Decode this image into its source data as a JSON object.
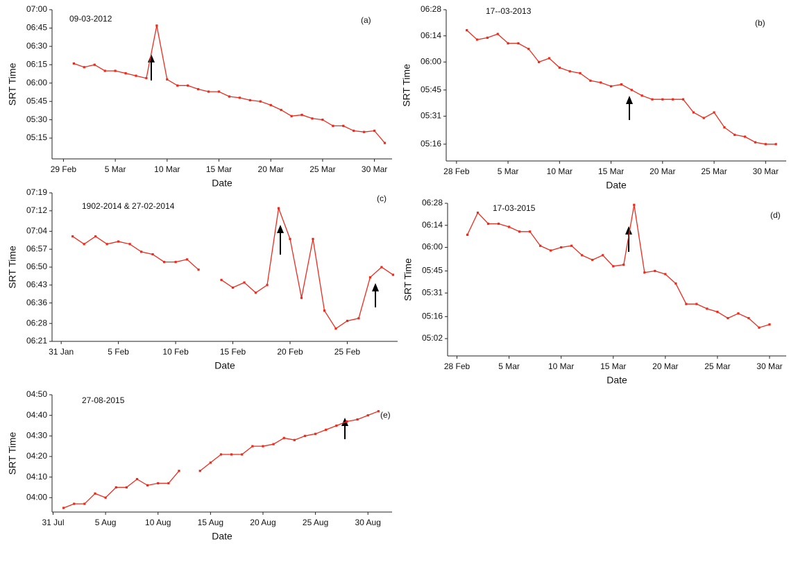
{
  "chart_data": [
    {
      "type": "line",
      "title": "09-03-2012",
      "panel_label": "(a)",
      "xlabel": "Date",
      "ylabel": "SRT Time",
      "x": [
        1,
        2,
        3,
        4,
        5,
        6,
        7,
        8,
        9,
        10,
        11,
        12,
        13,
        14,
        15,
        16,
        17,
        18,
        19,
        20,
        21,
        22,
        23,
        24,
        25,
        26,
        27,
        28,
        29,
        30,
        31
      ],
      "series": [
        {
          "color": "#ee2a1b",
          "values": [
            376,
            373,
            375,
            370,
            370,
            368,
            366,
            364,
            407,
            363,
            358,
            358,
            355,
            353,
            353,
            349,
            348,
            346,
            345,
            342,
            338,
            333,
            334,
            331,
            330,
            325,
            325,
            321,
            320,
            321,
            311
          ]
        }
      ],
      "xlim": [
        -1.1,
        31.7
      ],
      "xticks": [
        {
          "value": 0,
          "label": "29 Feb"
        },
        {
          "value": 5,
          "label": "5 Mar"
        },
        {
          "value": 10,
          "label": "10  Mar"
        },
        {
          "value": 15,
          "label": "15 Mar"
        },
        {
          "value": 20,
          "label": "20 Mar"
        },
        {
          "value": 25,
          "label": "25 Mar"
        },
        {
          "value": 30,
          "label": "30 Mar"
        }
      ],
      "ylim": [
        298,
        420
      ],
      "yticks": [
        {
          "value": 420,
          "label": "07:00"
        },
        {
          "value": 405,
          "label": "06:45"
        },
        {
          "value": 390,
          "label": "06:30"
        },
        {
          "value": 375,
          "label": "06:15"
        },
        {
          "value": 360,
          "label": "06:00"
        },
        {
          "value": 345,
          "label": "05:45"
        },
        {
          "value": 330,
          "label": "05:30"
        },
        {
          "value": 315,
          "label": "05:15"
        }
      ]
    },
    {
      "type": "line",
      "title": "17--03-2013",
      "panel_label": "(b)",
      "xlabel": "Date",
      "ylabel": "SRT Time",
      "x": [
        1,
        2,
        3,
        4,
        5,
        6,
        7,
        8,
        9,
        10,
        11,
        12,
        13,
        14,
        15,
        16,
        17,
        18,
        19,
        20,
        21,
        22,
        23,
        24,
        25,
        26,
        27,
        28,
        29,
        30,
        31
      ],
      "series": [
        {
          "color": "#ee2a1b",
          "values": [
            377,
            372,
            373,
            375,
            370,
            370,
            367,
            360,
            362,
            357,
            355,
            354,
            350,
            349,
            347,
            348,
            345,
            342,
            340,
            340,
            340,
            340,
            333,
            330,
            333,
            325,
            321,
            320,
            317,
            316,
            316
          ]
        }
      ],
      "xlim": [
        -1,
        32
      ],
      "xticks": [
        {
          "value": 0,
          "label": "28 Feb"
        },
        {
          "value": 5,
          "label": "5 Mar"
        },
        {
          "value": 10,
          "label": "10 Mar"
        },
        {
          "value": 15,
          "label": "15 Mar"
        },
        {
          "value": 20,
          "label": "20 Mar"
        },
        {
          "value": 25,
          "label": "25 Mar"
        },
        {
          "value": 30,
          "label": "30 Mar"
        }
      ],
      "ylim": [
        307,
        388
      ],
      "yticks": [
        {
          "value": 388,
          "label": "06:28"
        },
        {
          "value": 374,
          "label": "06:14"
        },
        {
          "value": 360,
          "label": "06:00"
        },
        {
          "value": 345,
          "label": "05:45"
        },
        {
          "value": 331,
          "label": "05:31"
        },
        {
          "value": 316,
          "label": "05:16"
        }
      ]
    },
    {
      "type": "line",
      "title": "1902-2014 & 27-02-2014",
      "panel_label": "(c)",
      "xlabel": "Date",
      "ylabel": "SRT Time",
      "x": [
        1,
        2,
        3,
        4,
        5,
        6,
        7,
        8,
        9,
        10,
        11,
        12,
        13,
        14,
        15,
        16,
        17,
        18,
        19,
        20,
        21,
        22,
        23,
        24,
        25,
        26,
        27,
        28,
        29
      ],
      "series": [
        {
          "color": "#ee2a1b",
          "values": [
            422,
            419,
            422,
            419,
            420,
            419,
            416,
            415,
            412,
            412,
            413,
            409,
            null,
            405,
            402,
            404,
            400,
            403,
            433,
            421,
            398,
            421,
            393,
            386,
            389,
            390,
            406,
            410,
            407
          ]
        }
      ],
      "xlim": [
        -0.8,
        29.4
      ],
      "xticks": [
        {
          "value": 0,
          "label": "31 Jan"
        },
        {
          "value": 5,
          "label": "5 Feb"
        },
        {
          "value": 10,
          "label": "10 Feb"
        },
        {
          "value": 15,
          "label": "15 Feb"
        },
        {
          "value": 20,
          "label": "20 Feb"
        },
        {
          "value": 25,
          "label": "25 Feb"
        }
      ],
      "ylim": [
        381,
        439
      ],
      "yticks": [
        {
          "value": 439,
          "label": "07:19"
        },
        {
          "value": 432,
          "label": "07:12"
        },
        {
          "value": 424,
          "label": "07:04"
        },
        {
          "value": 417,
          "label": "06:57"
        },
        {
          "value": 410,
          "label": "06:50"
        },
        {
          "value": 403,
          "label": "06:43"
        },
        {
          "value": 396,
          "label": "06:36"
        },
        {
          "value": 388,
          "label": "06:28"
        },
        {
          "value": 381,
          "label": "06:21"
        }
      ]
    },
    {
      "type": "line",
      "title": "17-03-2015",
      "panel_label": "(d)",
      "xlabel": "Date",
      "ylabel": "SRT Time",
      "x": [
        1,
        2,
        3,
        4,
        5,
        6,
        7,
        8,
        9,
        10,
        11,
        12,
        13,
        14,
        15,
        16,
        17,
        18,
        19,
        20,
        21,
        22,
        23,
        24,
        25,
        26,
        27,
        28,
        29,
        30
      ],
      "series": [
        {
          "color": "#ee2a1b",
          "values": [
            368,
            382,
            375,
            375,
            373,
            370,
            370,
            361,
            358,
            360,
            361,
            355,
            352,
            355,
            348,
            349,
            387,
            344,
            345,
            343,
            337,
            324,
            324,
            321,
            319,
            315,
            318,
            315,
            309,
            311
          ]
        }
      ],
      "xlim": [
        -0.9,
        31.6
      ],
      "xticks": [
        {
          "value": 0,
          "label": "28 Feb"
        },
        {
          "value": 5,
          "label": "5 Mar"
        },
        {
          "value": 10,
          "label": "10 Mar"
        },
        {
          "value": 15,
          "label": "15 Mar"
        },
        {
          "value": 20,
          "label": "20 Mar"
        },
        {
          "value": 25,
          "label": "25 Mar"
        },
        {
          "value": 30,
          "label": "30 Mar"
        }
      ],
      "ylim": [
        291,
        388
      ],
      "yticks": [
        {
          "value": 388,
          "label": "06:28"
        },
        {
          "value": 374,
          "label": "06:14"
        },
        {
          "value": 360,
          "label": "06:00"
        },
        {
          "value": 345,
          "label": "05:45"
        },
        {
          "value": 331,
          "label": "05:31"
        },
        {
          "value": 316,
          "label": "05:16"
        },
        {
          "value": 302,
          "label": "05:02"
        }
      ]
    },
    {
      "type": "line",
      "title": "27-08-2015",
      "panel_label": "(e)",
      "xlabel": "Date",
      "ylabel": "SRT Time",
      "x": [
        1,
        2,
        3,
        4,
        5,
        6,
        7,
        8,
        9,
        10,
        11,
        12,
        13,
        14,
        15,
        16,
        17,
        18,
        19,
        20,
        21,
        22,
        23,
        24,
        25,
        26,
        27,
        28,
        29,
        30,
        31
      ],
      "series": [
        {
          "color": "#ee2a1b",
          "values": [
            235,
            237,
            237,
            242,
            240,
            245,
            245,
            249,
            246,
            247,
            247,
            253,
            null,
            253,
            257,
            261,
            261,
            261,
            265,
            265,
            266,
            269,
            268,
            270,
            271,
            273,
            275,
            277,
            278,
            280,
            282
          ]
        }
      ],
      "xlim": [
        -0.1,
        32.3
      ],
      "xticks": [
        {
          "value": 0,
          "label": "31 Jul"
        },
        {
          "value": 5,
          "label": "5 Aug"
        },
        {
          "value": 10,
          "label": "10 Aug"
        },
        {
          "value": 15,
          "label": "15 Aug"
        },
        {
          "value": 20,
          "label": "20 Aug"
        },
        {
          "value": 25,
          "label": "25 Aug"
        },
        {
          "value": 30,
          "label": "30 Aug"
        }
      ],
      "ylim": [
        233,
        290
      ],
      "yticks": [
        {
          "value": 290,
          "label": "04:50"
        },
        {
          "value": 280,
          "label": "04:40"
        },
        {
          "value": 270,
          "label": "04:30"
        },
        {
          "value": 260,
          "label": "04:20"
        },
        {
          "value": 250,
          "label": "04:10"
        },
        {
          "value": 240,
          "label": "04:00"
        }
      ]
    }
  ]
}
